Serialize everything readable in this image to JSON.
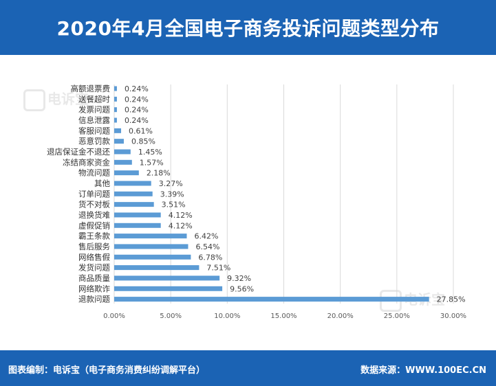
{
  "header": {
    "title": "2020年4月全国电子商务投诉问题类型分布"
  },
  "watermark": {
    "text": "电诉宝"
  },
  "footer": {
    "left_text": "图表编制：电诉宝（电子商务消费纠纷调解平台）",
    "right_text": "数据来源：WWW.100EC.CN"
  },
  "colors": {
    "header": "#1b63b4",
    "bar": "#5b9bd5",
    "grid": "#d9d9d9"
  },
  "chart_data": {
    "type": "bar",
    "orientation": "horizontal",
    "categories": [
      "高额退票费",
      "送餐超时",
      "发票问题",
      "信息泄露",
      "客服问题",
      "恶意罚款",
      "退店保证金不退还",
      "冻结商家资金",
      "物流问题",
      "其他",
      "订单问题",
      "货不对板",
      "退换货难",
      "虚假促销",
      "霸王条款",
      "售后服务",
      "网络售假",
      "发货问题",
      "商品质量",
      "网络欺诈",
      "退款问题"
    ],
    "values": [
      0.24,
      0.24,
      0.24,
      0.24,
      0.61,
      0.85,
      1.45,
      1.57,
      2.18,
      3.27,
      3.39,
      3.51,
      4.12,
      4.12,
      6.42,
      6.54,
      6.78,
      7.51,
      9.32,
      9.56,
      27.85
    ],
    "data_labels": [
      "0.24%",
      "0.24%",
      "0.24%",
      "0.24%",
      "0.61%",
      "0.85%",
      "1.45%",
      "1.57%",
      "2.18%",
      "3.27%",
      "3.39%",
      "3.51%",
      "4.12%",
      "4.12%",
      "6.42%",
      "6.54%",
      "6.78%",
      "7.51%",
      "9.32%",
      "9.56%",
      "27.85%"
    ],
    "xlim": [
      0,
      30
    ],
    "x_ticks": [
      0,
      5,
      10,
      15,
      20,
      25,
      30
    ],
    "x_tick_labels": [
      "0.00%",
      "5.00%",
      "10.00%",
      "15.00%",
      "20.00%",
      "25.00%",
      "30.00%"
    ],
    "grid": true,
    "legend": "none"
  }
}
